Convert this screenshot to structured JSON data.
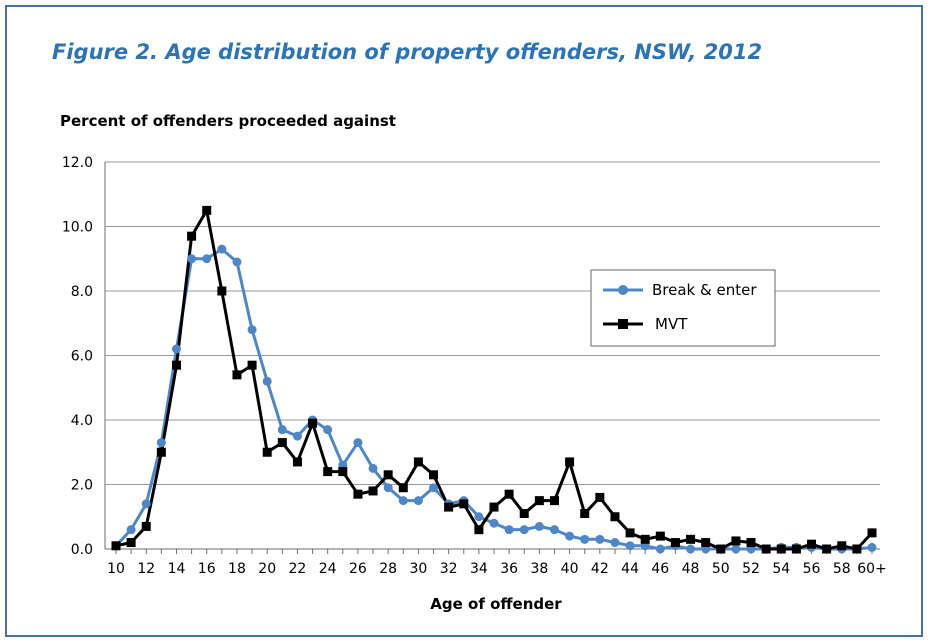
{
  "figure_title": "Figure 2. Age distribution of property offenders, NSW, 2012",
  "colors": {
    "frame": "#4a6db0",
    "title": "#2e74b5",
    "break_enter": "#4f86c6",
    "mvt": "#000000",
    "grid": "#9a9a9a"
  },
  "chart_data": {
    "type": "line",
    "title": "Figure 2. Age distribution of property offenders, NSW, 2012",
    "ylabel": "Percent of offenders proceeded against",
    "xlabel": "Age of offender",
    "ylim": [
      0,
      12
    ],
    "yticks": [
      "0.0",
      "2.0",
      "4.0",
      "6.0",
      "8.0",
      "10.0",
      "12.0"
    ],
    "grid": "horizontal",
    "legend_position": "right",
    "categories": [
      "10",
      "11",
      "12",
      "13",
      "14",
      "15",
      "16",
      "17",
      "18",
      "19",
      "20",
      "21",
      "22",
      "23",
      "24",
      "25",
      "26",
      "27",
      "28",
      "29",
      "30",
      "31",
      "32",
      "33",
      "34",
      "35",
      "36",
      "37",
      "38",
      "39",
      "40",
      "41",
      "42",
      "43",
      "44",
      "45",
      "46",
      "47",
      "48",
      "49",
      "50",
      "51",
      "52",
      "53",
      "54",
      "55",
      "56",
      "57",
      "58",
      "59",
      "60+"
    ],
    "xtick_labels": [
      "10",
      "",
      "12",
      "",
      "14",
      "",
      "16",
      "",
      "18",
      "",
      "20",
      "",
      "22",
      "",
      "24",
      "",
      "26",
      "",
      "28",
      "",
      "30",
      "",
      "32",
      "",
      "34",
      "",
      "36",
      "",
      "38",
      "",
      "40",
      "",
      "42",
      "",
      "44",
      "",
      "46",
      "",
      "48",
      "",
      "50",
      "",
      "52",
      "",
      "54",
      "",
      "56",
      "",
      "58",
      "",
      "60+"
    ],
    "series": [
      {
        "name": "Break & enter",
        "marker": "circle",
        "values": [
          0.1,
          0.6,
          1.4,
          3.3,
          6.2,
          9.0,
          9.0,
          9.3,
          8.9,
          6.8,
          5.2,
          3.7,
          3.5,
          4.0,
          3.7,
          2.6,
          3.3,
          2.5,
          1.9,
          1.5,
          1.5,
          1.9,
          1.4,
          1.5,
          1.0,
          0.8,
          0.6,
          0.6,
          0.7,
          0.6,
          0.4,
          0.3,
          0.3,
          0.2,
          0.1,
          0.1,
          0.0,
          0.1,
          0.0,
          0.0,
          0.0,
          0.0,
          0.0,
          0.0,
          0.05,
          0.05,
          0.05,
          0.0,
          0.0,
          0.0,
          0.05
        ]
      },
      {
        "name": "MVT",
        "marker": "square",
        "values": [
          0.1,
          0.2,
          0.7,
          3.0,
          5.7,
          9.7,
          10.5,
          8.0,
          5.4,
          5.7,
          3.0,
          3.3,
          2.7,
          3.9,
          2.4,
          2.4,
          1.7,
          1.8,
          2.3,
          1.9,
          2.7,
          2.3,
          1.3,
          1.4,
          0.6,
          1.3,
          1.7,
          1.1,
          1.5,
          1.5,
          2.7,
          1.1,
          1.6,
          1.0,
          0.5,
          0.3,
          0.4,
          0.2,
          0.3,
          0.2,
          0.0,
          0.25,
          0.2,
          0.0,
          0.0,
          0.0,
          0.15,
          0.0,
          0.1,
          0.0,
          0.5
        ]
      }
    ]
  }
}
